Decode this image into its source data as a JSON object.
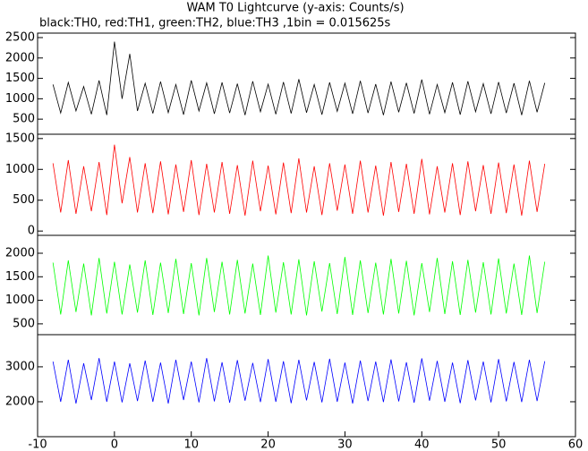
{
  "chart_data": [
    {
      "type": "line",
      "title": "WAM T0 Lightcurve (y-axis: Counts/s)",
      "subtitle": "black:TH0, red:TH1, green:TH2, blue:TH3 ,1bin = 0.015625s",
      "x": [
        -8,
        -7,
        -6,
        -5,
        -4,
        -3,
        -2,
        -1,
        0,
        1,
        2,
        3,
        4,
        5,
        6,
        7,
        8,
        9,
        10,
        11,
        12,
        13,
        14,
        15,
        16,
        17,
        18,
        19,
        20,
        21,
        22,
        23,
        24,
        25,
        26,
        27,
        28,
        29,
        30,
        31,
        32,
        33,
        34,
        35,
        36,
        37,
        38,
        39,
        40,
        41,
        42,
        43,
        44,
        45,
        46,
        47,
        48,
        49,
        50,
        51,
        52,
        53,
        54,
        55,
        56
      ],
      "series": [
        {
          "color": "#000000",
          "values": [
            1350,
            650,
            1400,
            700,
            1300,
            620,
            1450,
            600,
            2400,
            1000,
            2100,
            700,
            1380,
            640,
            1420,
            660,
            1350,
            610,
            1450,
            700,
            1390,
            630,
            1400,
            650,
            1370,
            600,
            1430,
            680,
            1360,
            620,
            1410,
            640,
            1480,
            660,
            1350,
            610,
            1400,
            690,
            1380,
            630,
            1440,
            650,
            1360,
            600,
            1420,
            670,
            1390,
            640,
            1470,
            620,
            1350,
            660,
            1400,
            610,
            1430,
            680,
            1370,
            630,
            1410,
            650,
            1380,
            600,
            1440,
            670,
            1390
          ]
        }
      ],
      "xlim": [
        -10,
        60
      ],
      "ylim": [
        130,
        2610
      ],
      "yticks": [
        500,
        1000,
        1500,
        2000,
        2500
      ]
    },
    {
      "type": "line",
      "x": [
        -8,
        -7,
        -6,
        -5,
        -4,
        -3,
        -2,
        -1,
        0,
        1,
        2,
        3,
        4,
        5,
        6,
        7,
        8,
        9,
        10,
        11,
        12,
        13,
        14,
        15,
        16,
        17,
        18,
        19,
        20,
        21,
        22,
        23,
        24,
        25,
        26,
        27,
        28,
        29,
        30,
        31,
        32,
        33,
        34,
        35,
        36,
        37,
        38,
        39,
        40,
        41,
        42,
        43,
        44,
        45,
        46,
        47,
        48,
        49,
        50,
        51,
        52,
        53,
        54,
        55,
        56
      ],
      "series": [
        {
          "color": "#ff0000",
          "values": [
            1100,
            300,
            1150,
            280,
            1050,
            320,
            1120,
            260,
            1400,
            450,
            1200,
            300,
            1100,
            290,
            1130,
            270,
            1080,
            310,
            1150,
            260,
            1090,
            300,
            1120,
            280,
            1070,
            250,
            1140,
            320,
            1060,
            270,
            1110,
            290,
            1180,
            300,
            1050,
            260,
            1100,
            330,
            1080,
            280,
            1140,
            300,
            1060,
            250,
            1120,
            310,
            1090,
            280,
            1170,
            270,
            1050,
            300,
            1100,
            260,
            1130,
            320,
            1070,
            280,
            1110,
            290,
            1080,
            250,
            1140,
            310,
            1090
          ]
        }
      ],
      "xlim": [
        -10,
        60
      ],
      "ylim": [
        -70,
        1570
      ],
      "yticks": [
        0,
        500,
        1000,
        1500
      ]
    },
    {
      "type": "line",
      "x": [
        -8,
        -7,
        -6,
        -5,
        -4,
        -3,
        -2,
        -1,
        0,
        1,
        2,
        3,
        4,
        5,
        6,
        7,
        8,
        9,
        10,
        11,
        12,
        13,
        14,
        15,
        16,
        17,
        18,
        19,
        20,
        21,
        22,
        23,
        24,
        25,
        26,
        27,
        28,
        29,
        30,
        31,
        32,
        33,
        34,
        35,
        36,
        37,
        38,
        39,
        40,
        41,
        42,
        43,
        44,
        45,
        46,
        47,
        48,
        49,
        50,
        51,
        52,
        53,
        54,
        55,
        56
      ],
      "series": [
        {
          "color": "#00ff00",
          "values": [
            1800,
            700,
            1850,
            750,
            1780,
            680,
            1900,
            720,
            1820,
            700,
            1760,
            740,
            1850,
            690,
            1800,
            730,
            1880,
            710,
            1790,
            680,
            1900,
            750,
            1820,
            700,
            1860,
            720,
            1780,
            690,
            1950,
            740,
            1810,
            700,
            1870,
            680,
            1830,
            760,
            1790,
            710,
            1920,
            690,
            1850,
            730,
            1800,
            700,
            1880,
            720,
            1840,
            680,
            1790,
            750,
            1900,
            710,
            1830,
            690,
            1860,
            740,
            1810,
            700,
            1890,
            720,
            1780,
            690,
            1950,
            730,
            1820
          ]
        }
      ],
      "xlim": [
        -10,
        60
      ],
      "ylim": [
        270,
        2380
      ],
      "yticks": [
        500,
        1000,
        1500,
        2000
      ]
    },
    {
      "type": "line",
      "x": [
        -8,
        -7,
        -6,
        -5,
        -4,
        -3,
        -2,
        -1,
        0,
        1,
        2,
        3,
        4,
        5,
        6,
        7,
        8,
        9,
        10,
        11,
        12,
        13,
        14,
        15,
        16,
        17,
        18,
        19,
        20,
        21,
        22,
        23,
        24,
        25,
        26,
        27,
        28,
        29,
        30,
        31,
        32,
        33,
        34,
        35,
        36,
        37,
        38,
        39,
        40,
        41,
        42,
        43,
        44,
        45,
        46,
        47,
        48,
        49,
        50,
        51,
        52,
        53,
        54,
        55,
        56
      ],
      "series": [
        {
          "color": "#0000ff",
          "values": [
            3150,
            2000,
            3200,
            1950,
            3100,
            2050,
            3250,
            2000,
            3150,
            1980,
            3100,
            2020,
            3180,
            2000,
            3120,
            1950,
            3200,
            2050,
            3150,
            1980,
            3250,
            2010,
            3130,
            1970,
            3190,
            2030,
            3110,
            1990,
            3220,
            2000,
            3160,
            1960,
            3200,
            2040,
            3140,
            1980,
            3230,
            2000,
            3120,
            1950,
            3180,
            2020,
            3150,
            1990,
            3210,
            2010,
            3130,
            1970,
            3240,
            2030,
            3170,
            2000,
            3120,
            1960,
            3190,
            2040,
            3150,
            1980,
            3220,
            2010,
            3140,
            1990,
            3200,
            2020,
            3160
          ]
        }
      ],
      "xlim": [
        -10,
        60
      ],
      "ylim": [
        1000,
        3920
      ],
      "yticks": [
        2000,
        3000
      ],
      "xticks": [
        -10,
        0,
        10,
        20,
        30,
        40,
        50,
        60
      ]
    }
  ]
}
